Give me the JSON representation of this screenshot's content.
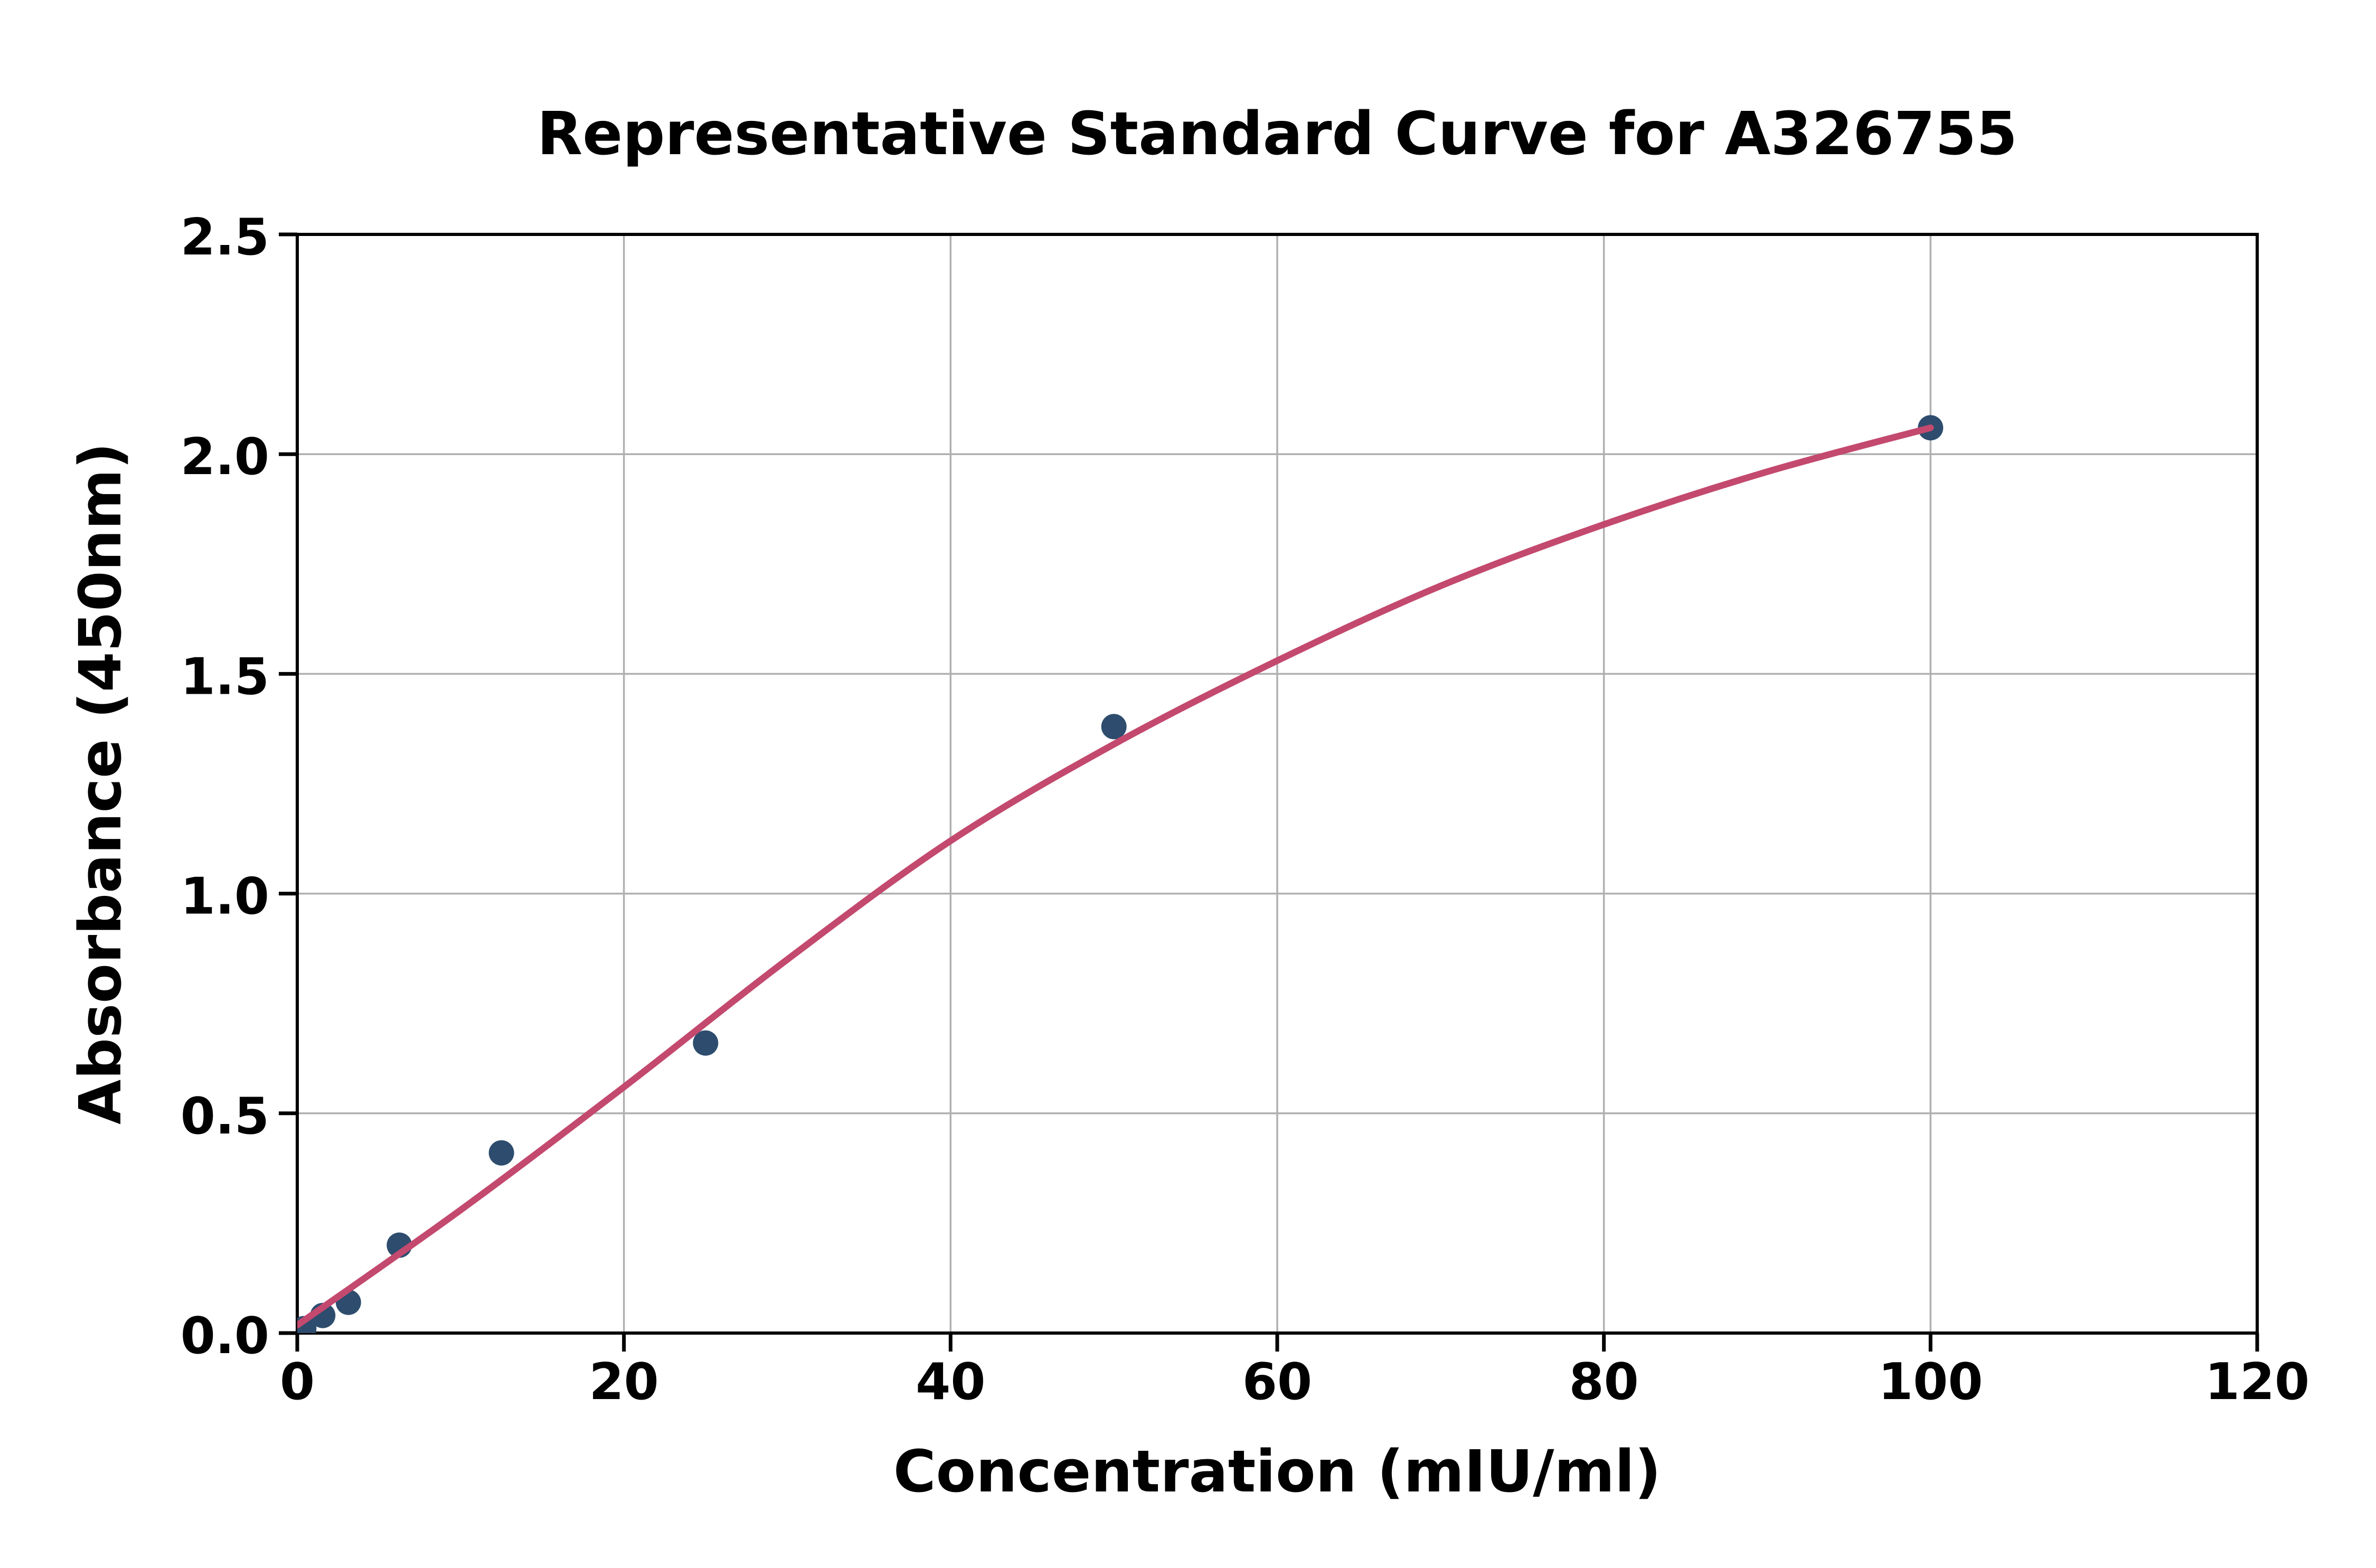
{
  "figure": {
    "background": "#ffffff"
  },
  "chart_data": {
    "type": "scatter",
    "title": "Representative Standard Curve for A326755",
    "xlabel": "Concentration (mIU/ml)",
    "ylabel": "Absorbance (450nm)",
    "xlim": [
      0,
      120
    ],
    "ylim": [
      0.0,
      2.5
    ],
    "x_ticks": [
      0,
      20,
      40,
      60,
      80,
      100,
      120
    ],
    "y_ticks": [
      0.0,
      0.5,
      1.0,
      1.5,
      2.0,
      2.5
    ],
    "x_tick_labels": [
      "0",
      "20",
      "40",
      "60",
      "80",
      "100",
      "120"
    ],
    "y_tick_labels": [
      "0.0",
      "0.5",
      "1.0",
      "1.5",
      "2.0",
      "2.5"
    ],
    "grid": true,
    "legend_position": "none",
    "series": [
      {
        "name": "standard-points",
        "kind": "scatter",
        "color": "#2e4d6e",
        "points": [
          {
            "x": 0.4,
            "y": 0.01
          },
          {
            "x": 1.56,
            "y": 0.04
          },
          {
            "x": 3.13,
            "y": 0.07
          },
          {
            "x": 6.25,
            "y": 0.2
          },
          {
            "x": 12.5,
            "y": 0.41
          },
          {
            "x": 25,
            "y": 0.66
          },
          {
            "x": 50,
            "y": 1.38
          },
          {
            "x": 100,
            "y": 2.06
          }
        ]
      },
      {
        "name": "fitted-curve",
        "kind": "line",
        "color": "#c3496f",
        "points": [
          {
            "x": 0,
            "y": 0.018
          },
          {
            "x": 10,
            "y": 0.28
          },
          {
            "x": 20,
            "y": 0.56
          },
          {
            "x": 30,
            "y": 0.85
          },
          {
            "x": 40,
            "y": 1.12
          },
          {
            "x": 50,
            "y": 1.34
          },
          {
            "x": 60,
            "y": 1.53
          },
          {
            "x": 70,
            "y": 1.7
          },
          {
            "x": 80,
            "y": 1.84
          },
          {
            "x": 90,
            "y": 1.96
          },
          {
            "x": 100,
            "y": 2.06
          }
        ]
      }
    ],
    "colors": {
      "point": "#2e4d6e",
      "curve": "#c3496f",
      "grid": "#b0b0b0",
      "axis": "#000000",
      "background": "#ffffff"
    }
  }
}
